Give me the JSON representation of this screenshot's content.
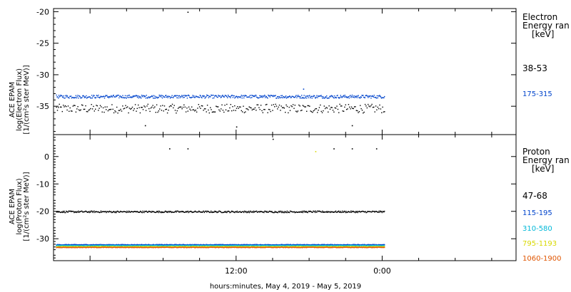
{
  "xaxis": {
    "label": "hours:minutes, May  4, 2019 - May  5, 2019",
    "ticks": [
      {
        "label": "12:00",
        "hour": 12
      },
      {
        "label": "0:00",
        "hour": 24
      }
    ],
    "range_hours": [
      -3,
      35
    ]
  },
  "chart_data": [
    {
      "type": "scatter",
      "panel": "electron",
      "ylabel": [
        "ACE EPAM",
        "log(Electron Flux)",
        "[1/(cm²s ster MeV)]"
      ],
      "ylim": [
        -39.5,
        -19.5
      ],
      "yticks": [
        -20,
        -25,
        -30,
        -35
      ],
      "legend_title": [
        "Electron",
        "Energy ran",
        "[keV]"
      ],
      "series": [
        {
          "name": "38-53",
          "color": "#000000",
          "baseline": -35.3,
          "jitter": 0.7,
          "outliers": [
            {
              "x": 8.0,
              "y": -20.0
            },
            {
              "x": 4.5,
              "y": -38.0
            },
            {
              "x": 12.0,
              "y": -38.2
            },
            {
              "x": 21.5,
              "y": -38.0
            }
          ]
        },
        {
          "name": "175-315",
          "color": "#0044cc",
          "baseline": -33.4,
          "jitter": 0.25,
          "outliers": [
            {
              "x": 17.5,
              "y": -32.2
            }
          ]
        }
      ]
    },
    {
      "type": "scatter",
      "panel": "proton",
      "ylabel": [
        "ACE EPAM",
        "log(Proton Flux)",
        "[1/(cm²s ster MeV)]"
      ],
      "ylim": [
        -38,
        8
      ],
      "yticks": [
        0,
        -10,
        -20,
        -30
      ],
      "legend_title": [
        "Proton",
        "Energy ran",
        "[keV]"
      ],
      "series": [
        {
          "name": "47-68",
          "color": "#000000",
          "baseline": -20.0,
          "jitter": 0.3,
          "outliers": [
            {
              "x": 6.5,
              "y": 3.0
            },
            {
              "x": 8.0,
              "y": 3.0
            },
            {
              "x": 15.0,
              "y": 6.5
            },
            {
              "x": 20.0,
              "y": 3.0
            },
            {
              "x": 21.5,
              "y": 3.0
            },
            {
              "x": 23.5,
              "y": 3.0
            }
          ]
        },
        {
          "name": "115-195",
          "color": "#0044cc",
          "baseline": -32.0,
          "jitter": 0.1,
          "outliers": []
        },
        {
          "name": "310-580",
          "color": "#00b8d8",
          "baseline": -32.3,
          "jitter": 0.1,
          "outliers": []
        },
        {
          "name": "795-1193",
          "color": "#d8d800",
          "baseline": -32.7,
          "jitter": 0.1,
          "outliers": [
            {
              "x": 18.5,
              "y": 2.0
            }
          ]
        },
        {
          "name": "1060-1900",
          "color": "#e05500",
          "baseline": -33.0,
          "jitter": 0.1,
          "outliers": []
        }
      ]
    }
  ]
}
